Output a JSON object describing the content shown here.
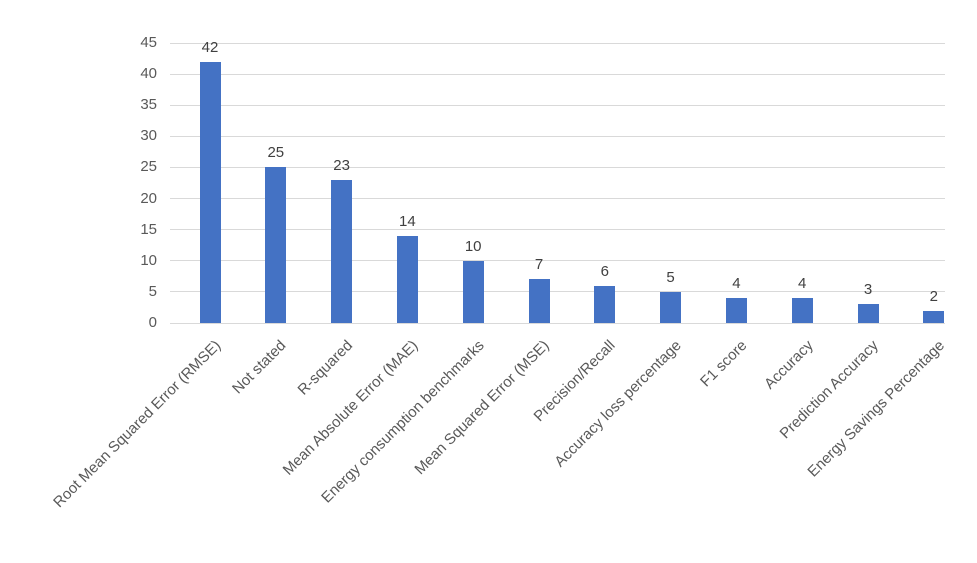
{
  "chart_data": {
    "type": "bar",
    "title": "",
    "xlabel": "",
    "ylabel": "",
    "categories": [
      "Root Mean Squared Error (RMSE)",
      "Not stated",
      "R-squared",
      "Mean Absolute Error (MAE)",
      "Energy consumption benchmarks",
      "Mean Squared Error (MSE)",
      "Precision/Recall",
      "Accuracy loss percentage",
      "F1 score",
      "Accuracy",
      "Prediction Accuracy",
      "Energy Savings Percentage"
    ],
    "values": [
      42,
      25,
      23,
      14,
      10,
      7,
      6,
      5,
      4,
      4,
      3,
      2
    ],
    "yticks": [
      0,
      5,
      10,
      15,
      20,
      25,
      30,
      35,
      40,
      45
    ],
    "ylim": [
      0,
      45
    ],
    "grid": true,
    "legend_position": "none",
    "data_labels_shown": true,
    "category_label_rotation_deg": 45,
    "colors": {
      "bar": "#4472c4",
      "gridline": "#d9d9d9",
      "axis_text": "#595959",
      "data_label": "#404040",
      "background": "#ffffff"
    }
  }
}
